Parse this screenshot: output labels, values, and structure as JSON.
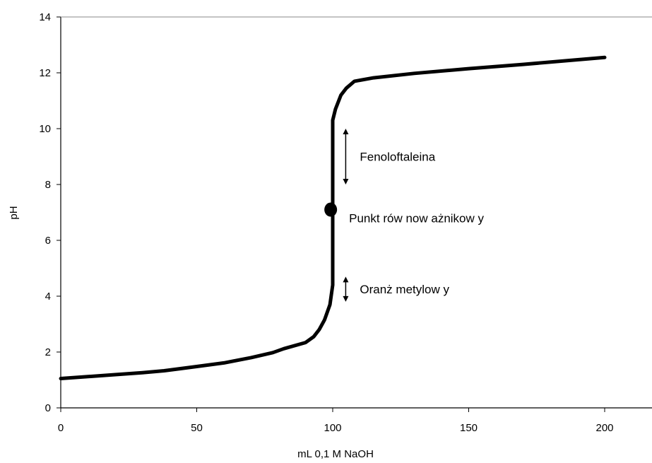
{
  "chart_data": {
    "type": "line",
    "title": "",
    "xlabel": "mL 0,1 M NaOH",
    "ylabel": "pH",
    "xlim": [
      0,
      215
    ],
    "ylim": [
      0,
      14
    ],
    "xticks": [
      0,
      50,
      100,
      150,
      200
    ],
    "yticks": [
      0,
      2,
      4,
      6,
      8,
      10,
      12,
      14
    ],
    "grid": false,
    "series": [
      {
        "color": "#000000",
        "x": [
          0,
          10,
          20,
          30,
          38,
          50,
          60,
          70,
          78,
          82,
          90,
          93,
          95,
          97,
          99,
          100,
          100,
          100,
          100,
          101,
          103,
          105,
          108,
          115,
          130,
          150,
          170,
          200
        ],
        "y": [
          1.05,
          1.12,
          1.19,
          1.26,
          1.33,
          1.48,
          1.61,
          1.8,
          1.98,
          2.12,
          2.34,
          2.55,
          2.8,
          3.15,
          3.7,
          4.4,
          7.0,
          9.5,
          10.3,
          10.7,
          11.2,
          11.45,
          11.7,
          11.82,
          11.98,
          12.15,
          12.3,
          12.55
        ]
      }
    ],
    "equivalence_point": {
      "x": 99,
      "y": 7.1,
      "label": "Punkt rów now ażnikow y"
    },
    "indicators": [
      {
        "label": "Fenoloftaleina",
        "x": 104,
        "y_from": 8.0,
        "y_to": 10.0
      },
      {
        "label": "Oranż metylow y",
        "x": 104,
        "y_from": 3.8,
        "y_to": 4.7
      }
    ]
  }
}
